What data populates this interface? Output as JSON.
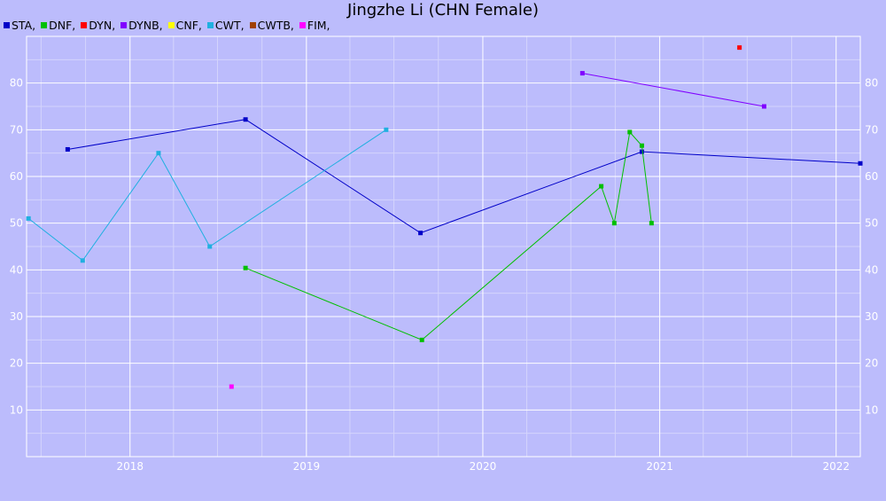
{
  "chart_data": {
    "type": "line",
    "title": "Jingzhe Li (CHN Female)",
    "xlabel": "",
    "ylabel": "",
    "x_range": [
      "2017-06-01",
      "2022-02-20"
    ],
    "ylim": [
      0,
      90
    ],
    "y_ticks": [
      10,
      20,
      30,
      40,
      50,
      60,
      70,
      80
    ],
    "x_ticks": [
      "2018",
      "2019",
      "2020",
      "2021",
      "2022"
    ],
    "grid": true,
    "legend_placement": "top-left",
    "background_color": "#bcbcfc",
    "series": [
      {
        "name": "STA",
        "color": "#0000c8",
        "points": [
          {
            "x": "2017-08-25",
            "y": 65.8
          },
          {
            "x": "2018-08-28",
            "y": 72.2
          },
          {
            "x": "2019-08-25",
            "y": 47.9
          },
          {
            "x": "2020-11-25",
            "y": 65.3
          },
          {
            "x": "2022-02-20",
            "y": 62.8
          }
        ]
      },
      {
        "name": "DNF",
        "color": "#00c000",
        "points": [
          {
            "x": "2018-08-28",
            "y": 40.4
          },
          {
            "x": "2019-08-28",
            "y": 25.0
          },
          {
            "x": "2020-09-02",
            "y": 57.9
          },
          {
            "x": "2020-09-29",
            "y": 50.0
          },
          {
            "x": "2020-10-31",
            "y": 69.5
          },
          {
            "x": "2020-11-25",
            "y": 66.6
          },
          {
            "x": "2020-12-15",
            "y": 50.0
          }
        ]
      },
      {
        "name": "DYN",
        "color": "#ff0000",
        "points": [
          {
            "x": "2021-06-15",
            "y": 87.6
          }
        ]
      },
      {
        "name": "DYNB",
        "color": "#8000ff",
        "points": [
          {
            "x": "2020-07-25",
            "y": 82.1
          },
          {
            "x": "2021-08-05",
            "y": 75.0
          }
        ]
      },
      {
        "name": "CNF",
        "color": "#ffff00",
        "points": []
      },
      {
        "name": "CWT",
        "color": "#20b0e0",
        "points": [
          {
            "x": "2017-06-05",
            "y": 51.0
          },
          {
            "x": "2017-09-25",
            "y": 42.0
          },
          {
            "x": "2018-03-01",
            "y": 65.0
          },
          {
            "x": "2018-06-15",
            "y": 45.0
          },
          {
            "x": "2019-06-15",
            "y": 70.0
          }
        ]
      },
      {
        "name": "CWTB",
        "color": "#a04000",
        "points": []
      },
      {
        "name": "FIM",
        "color": "#ff00ff",
        "points": [
          {
            "x": "2018-07-30",
            "y": 15.0
          }
        ]
      }
    ]
  }
}
